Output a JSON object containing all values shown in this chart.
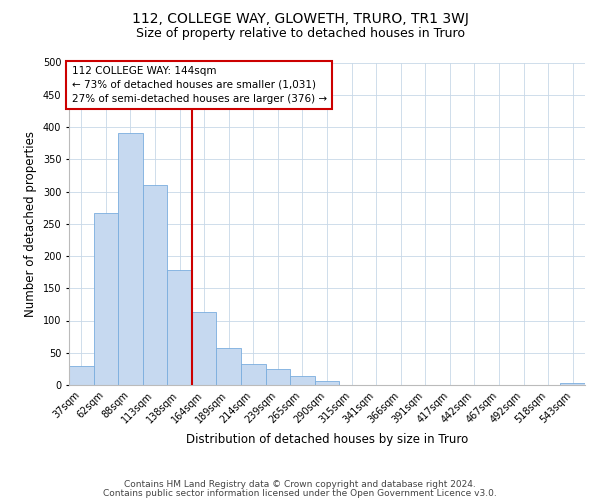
{
  "title": "112, COLLEGE WAY, GLOWETH, TRURO, TR1 3WJ",
  "subtitle": "Size of property relative to detached houses in Truro",
  "xlabel": "Distribution of detached houses by size in Truro",
  "ylabel": "Number of detached properties",
  "bar_labels": [
    "37sqm",
    "62sqm",
    "88sqm",
    "113sqm",
    "138sqm",
    "164sqm",
    "189sqm",
    "214sqm",
    "239sqm",
    "265sqm",
    "290sqm",
    "315sqm",
    "341sqm",
    "366sqm",
    "391sqm",
    "417sqm",
    "442sqm",
    "467sqm",
    "492sqm",
    "518sqm",
    "543sqm"
  ],
  "bar_values": [
    29,
    267,
    390,
    310,
    178,
    113,
    58,
    32,
    25,
    14,
    6,
    0,
    0,
    0,
    0,
    0,
    0,
    0,
    0,
    0,
    3
  ],
  "bar_color": "#c6d9f0",
  "bar_edgecolor": "#7aadde",
  "vline_x": 4.5,
  "vline_color": "#cc0000",
  "ylim": [
    0,
    500
  ],
  "yticks": [
    0,
    50,
    100,
    150,
    200,
    250,
    300,
    350,
    400,
    450,
    500
  ],
  "annotation_title": "112 COLLEGE WAY: 144sqm",
  "annotation_line1": "← 73% of detached houses are smaller (1,031)",
  "annotation_line2": "27% of semi-detached houses are larger (376) →",
  "footer_line1": "Contains HM Land Registry data © Crown copyright and database right 2024.",
  "footer_line2": "Contains public sector information licensed under the Open Government Licence v3.0.",
  "background_color": "#ffffff",
  "grid_color": "#c8d8e8",
  "title_fontsize": 10,
  "subtitle_fontsize": 9,
  "axis_label_fontsize": 8.5,
  "tick_fontsize": 7,
  "footer_fontsize": 6.5,
  "annotation_fontsize": 7.5
}
